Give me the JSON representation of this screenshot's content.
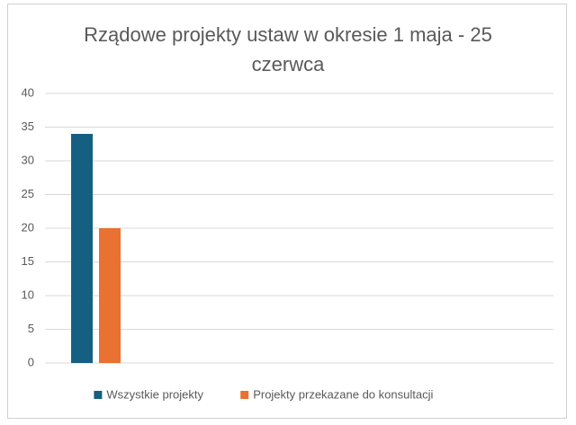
{
  "chart_data": {
    "type": "bar",
    "title": "Rządowe projekty ustaw w okresie 1 maja - 25 czerwca",
    "categories": [
      null,
      null,
      null,
      null,
      null
    ],
    "series": [
      {
        "name": "Wszystkie projekty",
        "color": "#156082",
        "values": [
          34,
          null,
          null,
          null,
          null
        ]
      },
      {
        "name": "Projekty przekazane do konsultacji",
        "color": "#e97132",
        "values": [
          20,
          null,
          null,
          null,
          null
        ]
      }
    ],
    "ylim": [
      0,
      40
    ],
    "yticks": [
      0,
      5,
      10,
      15,
      20,
      25,
      30,
      35,
      40
    ],
    "grid": true,
    "legend": "bottom"
  }
}
